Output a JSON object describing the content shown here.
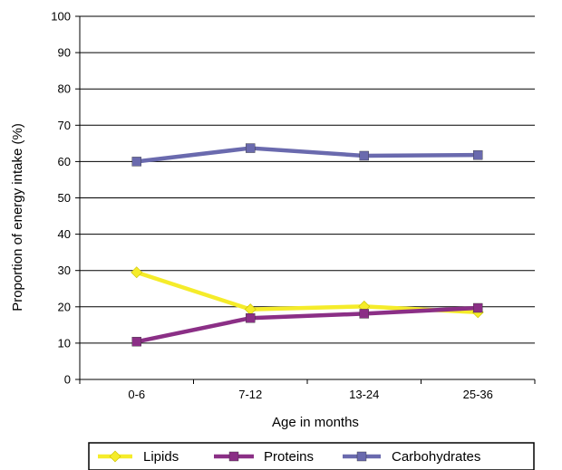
{
  "chart_data": {
    "type": "line",
    "categories": [
      "0-6",
      "7-12",
      "13-24",
      "25-36"
    ],
    "series": [
      {
        "name": "Lipids",
        "values": [
          29.5,
          19.3,
          20.1,
          18.5
        ],
        "color": "#F5EC2A",
        "marker": "diamond"
      },
      {
        "name": "Proteins",
        "values": [
          10.4,
          16.9,
          18.1,
          19.7
        ],
        "color": "#8B2F86",
        "marker": "square"
      },
      {
        "name": "Carbohydrates",
        "values": [
          60.0,
          63.7,
          61.6,
          61.8
        ],
        "color": "#6A6AAE",
        "marker": "square"
      }
    ],
    "title": "",
    "xlabel": "Age in months",
    "ylabel": "Proportion of energy intake (%)",
    "ylim": [
      0,
      100
    ],
    "yticks": [
      0,
      10,
      20,
      30,
      40,
      50,
      60,
      70,
      80,
      90,
      100
    ],
    "grid": true,
    "legend_position": "bottom"
  }
}
